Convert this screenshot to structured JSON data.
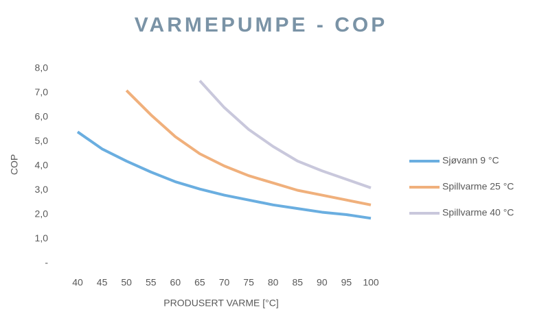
{
  "chart_data": {
    "type": "line",
    "title": "VARMEPUMPE - COP",
    "x_label": "PRODUSERT VARME [°C]",
    "y_label": "COP",
    "x": [
      40,
      45,
      50,
      55,
      60,
      65,
      70,
      75,
      80,
      85,
      90,
      95,
      100
    ],
    "series": [
      {
        "name": "Sjøvann 9 °C",
        "color": "#6aaee0",
        "values": [
          5.4,
          4.7,
          4.2,
          3.75,
          3.35,
          3.05,
          2.8,
          2.6,
          2.4,
          2.25,
          2.1,
          2.0,
          1.85
        ]
      },
      {
        "name": "Spillvarme 25 °C",
        "color": "#f0b07c",
        "values": [
          null,
          null,
          7.1,
          6.1,
          5.2,
          4.5,
          4.0,
          3.6,
          3.3,
          3.0,
          2.8,
          2.6,
          2.4
        ]
      },
      {
        "name": "Spillvarme 40 °C",
        "color": "#c9c8dc",
        "values": [
          null,
          null,
          null,
          null,
          null,
          7.5,
          6.4,
          5.5,
          4.8,
          4.2,
          3.8,
          3.45,
          3.1
        ]
      }
    ],
    "xlim": [
      40,
      100
    ],
    "xticks": [
      40,
      45,
      50,
      55,
      60,
      65,
      70,
      75,
      80,
      85,
      90,
      95,
      100
    ],
    "ylim": [
      0,
      8
    ],
    "yticks": [
      {
        "value": 0,
        "label": "-"
      },
      {
        "value": 1,
        "label": "1,0"
      },
      {
        "value": 2,
        "label": "2,0"
      },
      {
        "value": 3,
        "label": "3,0"
      },
      {
        "value": 4,
        "label": "4,0"
      },
      {
        "value": 5,
        "label": "5,0"
      },
      {
        "value": 6,
        "label": "6,0"
      },
      {
        "value": 7,
        "label": "7,0"
      },
      {
        "value": 8,
        "label": "8,0"
      }
    ],
    "grid": false,
    "legend": "right"
  }
}
